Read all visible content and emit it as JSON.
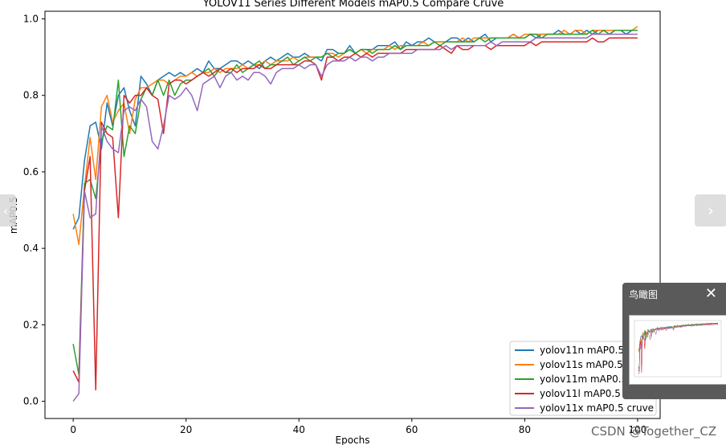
{
  "viewer": {
    "prev_icon": "chevron-left-icon",
    "next_icon": "chevron-right-icon",
    "prev_glyph": "‹",
    "next_glyph": "›",
    "minimap_title": "鸟瞰图",
    "minimap_close_glyph": "✕",
    "watermark": "CSDN @Together_CZ"
  },
  "chart_data": {
    "type": "line",
    "title": "YOLOV11 Series Different Models mAP0.5 Compare Cruve",
    "xlabel": "Epochs",
    "ylabel": "mAP0.5",
    "xlim": [
      -5,
      104
    ],
    "ylim": [
      -0.045,
      1.02
    ],
    "xticks": [
      0,
      20,
      40,
      60,
      80,
      100
    ],
    "xtick_labels": [
      "0",
      "20",
      "40",
      "60",
      "80",
      "100"
    ],
    "yticks": [
      0.0,
      0.2,
      0.4,
      0.6,
      0.8,
      1.0
    ],
    "ytick_labels": [
      "0.0",
      "0.2",
      "0.4",
      "0.6",
      "0.8",
      "1.0"
    ],
    "grid": false,
    "legend": "bottom-right",
    "series": [
      {
        "name": "yolov11n mAP0.5 cruve",
        "color": "#1f77b4",
        "values": [
          0.45,
          0.48,
          0.63,
          0.72,
          0.73,
          0.66,
          0.78,
          0.72,
          0.8,
          0.82,
          0.76,
          0.72,
          0.85,
          0.83,
          0.8,
          0.84,
          0.85,
          0.86,
          0.85,
          0.86,
          0.85,
          0.86,
          0.87,
          0.86,
          0.89,
          0.87,
          0.87,
          0.88,
          0.89,
          0.89,
          0.88,
          0.89,
          0.88,
          0.87,
          0.89,
          0.9,
          0.89,
          0.9,
          0.91,
          0.9,
          0.9,
          0.91,
          0.9,
          0.9,
          0.89,
          0.92,
          0.92,
          0.91,
          0.91,
          0.93,
          0.91,
          0.92,
          0.92,
          0.92,
          0.93,
          0.93,
          0.93,
          0.94,
          0.92,
          0.94,
          0.93,
          0.94,
          0.94,
          0.95,
          0.94,
          0.94,
          0.94,
          0.95,
          0.95,
          0.94,
          0.95,
          0.94,
          0.95,
          0.96,
          0.94,
          0.95,
          0.95,
          0.95,
          0.96,
          0.95,
          0.95,
          0.96,
          0.95,
          0.96,
          0.96,
          0.96,
          0.97,
          0.96,
          0.96,
          0.97,
          0.96,
          0.97,
          0.96,
          0.97,
          0.97,
          0.96,
          0.97,
          0.97,
          0.96,
          0.97,
          0.97
        ]
      },
      {
        "name": "yolov11s mAP0.5 cruve",
        "color": "#ff7f0e",
        "values": [
          0.49,
          0.41,
          0.56,
          0.69,
          0.58,
          0.77,
          0.8,
          0.73,
          0.76,
          0.78,
          0.7,
          0.79,
          0.82,
          0.82,
          0.83,
          0.84,
          0.84,
          0.83,
          0.84,
          0.85,
          0.85,
          0.86,
          0.85,
          0.86,
          0.86,
          0.87,
          0.86,
          0.87,
          0.87,
          0.87,
          0.88,
          0.87,
          0.88,
          0.88,
          0.89,
          0.88,
          0.89,
          0.89,
          0.89,
          0.9,
          0.89,
          0.9,
          0.9,
          0.9,
          0.9,
          0.91,
          0.91,
          0.9,
          0.91,
          0.92,
          0.91,
          0.92,
          0.91,
          0.92,
          0.92,
          0.92,
          0.93,
          0.92,
          0.93,
          0.93,
          0.93,
          0.93,
          0.94,
          0.93,
          0.94,
          0.94,
          0.94,
          0.94,
          0.94,
          0.95,
          0.94,
          0.95,
          0.95,
          0.95,
          0.95,
          0.95,
          0.95,
          0.95,
          0.96,
          0.95,
          0.96,
          0.96,
          0.96,
          0.96,
          0.96,
          0.96,
          0.96,
          0.97,
          0.96,
          0.97,
          0.97,
          0.96,
          0.97,
          0.97,
          0.97,
          0.97,
          0.97,
          0.97,
          0.97,
          0.97,
          0.98
        ]
      },
      {
        "name": "yolov11m mAP0.5 cruve",
        "color": "#2ca02c",
        "values": [
          0.15,
          0.07,
          0.57,
          0.58,
          0.53,
          0.68,
          0.72,
          0.71,
          0.84,
          0.64,
          0.72,
          0.7,
          0.79,
          0.82,
          0.8,
          0.84,
          0.8,
          0.84,
          0.8,
          0.83,
          0.84,
          0.84,
          0.85,
          0.86,
          0.87,
          0.85,
          0.87,
          0.86,
          0.86,
          0.88,
          0.86,
          0.87,
          0.88,
          0.89,
          0.87,
          0.88,
          0.88,
          0.89,
          0.9,
          0.88,
          0.89,
          0.9,
          0.89,
          0.9,
          0.9,
          0.91,
          0.9,
          0.91,
          0.91,
          0.92,
          0.91,
          0.92,
          0.92,
          0.91,
          0.92,
          0.92,
          0.92,
          0.93,
          0.92,
          0.93,
          0.93,
          0.93,
          0.93,
          0.93,
          0.94,
          0.93,
          0.94,
          0.94,
          0.94,
          0.94,
          0.94,
          0.94,
          0.95,
          0.94,
          0.95,
          0.95,
          0.95,
          0.95,
          0.95,
          0.95,
          0.95,
          0.96,
          0.96,
          0.95,
          0.96,
          0.96,
          0.96,
          0.96,
          0.96,
          0.96,
          0.96,
          0.96,
          0.97,
          0.96,
          0.97,
          0.96,
          0.97,
          0.97,
          0.97,
          0.97,
          0.97
        ]
      },
      {
        "name": "yolov11l mAP0.5 cruve",
        "color": "#d62728",
        "values": [
          0.08,
          0.05,
          0.55,
          0.64,
          0.03,
          0.73,
          0.7,
          0.69,
          0.48,
          0.8,
          0.78,
          0.8,
          0.8,
          0.82,
          0.8,
          0.79,
          0.7,
          0.83,
          0.84,
          0.84,
          0.83,
          0.84,
          0.85,
          0.86,
          0.85,
          0.86,
          0.87,
          0.86,
          0.87,
          0.86,
          0.87,
          0.87,
          0.87,
          0.88,
          0.87,
          0.87,
          0.88,
          0.88,
          0.88,
          0.88,
          0.88,
          0.89,
          0.89,
          0.88,
          0.84,
          0.9,
          0.9,
          0.89,
          0.9,
          0.9,
          0.91,
          0.9,
          0.91,
          0.9,
          0.91,
          0.91,
          0.91,
          0.91,
          0.91,
          0.92,
          0.92,
          0.92,
          0.92,
          0.92,
          0.92,
          0.93,
          0.92,
          0.91,
          0.93,
          0.92,
          0.92,
          0.93,
          0.93,
          0.93,
          0.92,
          0.93,
          0.93,
          0.93,
          0.93,
          0.93,
          0.93,
          0.94,
          0.93,
          0.94,
          0.94,
          0.94,
          0.94,
          0.94,
          0.94,
          0.94,
          0.94,
          0.94,
          0.95,
          0.94,
          0.94,
          0.95,
          0.95,
          0.95,
          0.95,
          0.95,
          0.95
        ]
      },
      {
        "name": "yolov11x mAP0.5 cruve",
        "color": "#9467bd",
        "values": [
          0.0,
          0.02,
          0.55,
          0.48,
          0.49,
          0.72,
          0.68,
          0.66,
          0.65,
          0.76,
          0.77,
          0.76,
          0.79,
          0.77,
          0.68,
          0.66,
          0.72,
          0.8,
          0.79,
          0.8,
          0.82,
          0.8,
          0.76,
          0.83,
          0.84,
          0.85,
          0.82,
          0.85,
          0.86,
          0.84,
          0.85,
          0.84,
          0.86,
          0.86,
          0.85,
          0.83,
          0.86,
          0.87,
          0.87,
          0.87,
          0.88,
          0.87,
          0.88,
          0.88,
          0.85,
          0.88,
          0.89,
          0.89,
          0.89,
          0.9,
          0.89,
          0.9,
          0.9,
          0.89,
          0.9,
          0.9,
          0.91,
          0.91,
          0.91,
          0.91,
          0.91,
          0.92,
          0.92,
          0.92,
          0.92,
          0.92,
          0.93,
          0.92,
          0.93,
          0.93,
          0.93,
          0.93,
          0.93,
          0.93,
          0.94,
          0.93,
          0.94,
          0.94,
          0.94,
          0.94,
          0.94,
          0.94,
          0.95,
          0.95,
          0.95,
          0.95,
          0.95,
          0.95,
          0.95,
          0.95,
          0.95,
          0.95,
          0.96,
          0.96,
          0.96,
          0.96,
          0.96,
          0.96,
          0.96,
          0.96,
          0.96
        ]
      }
    ]
  }
}
